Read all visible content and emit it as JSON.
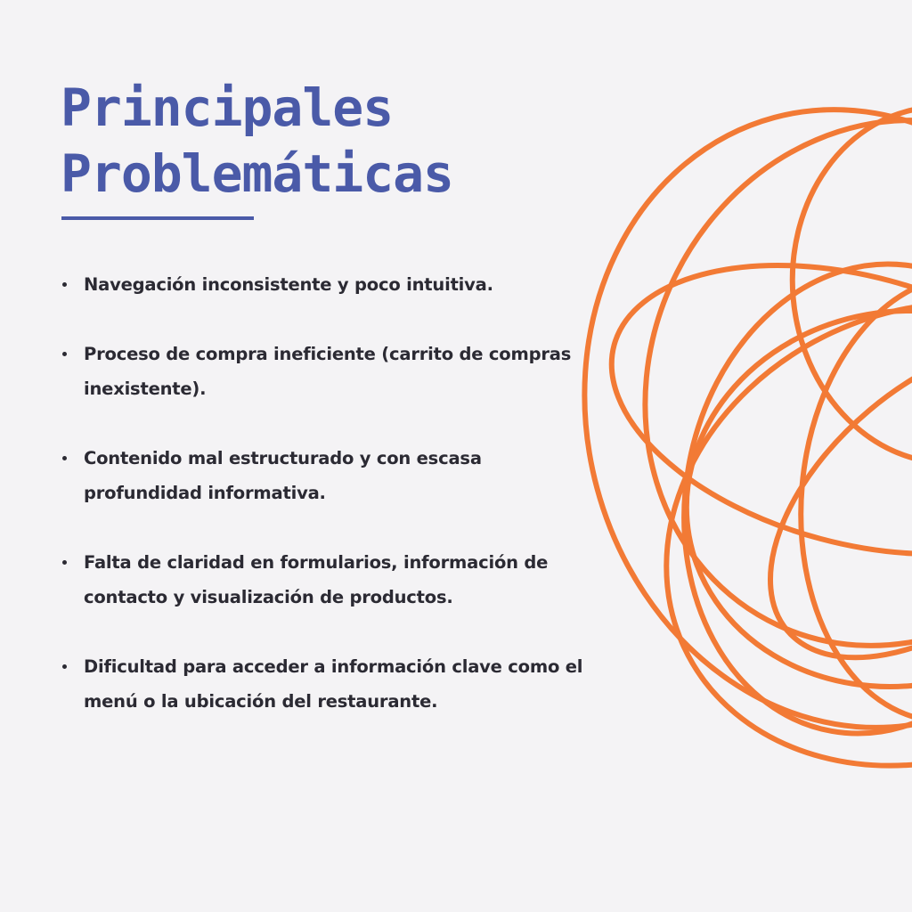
{
  "title": {
    "line1": "Principales",
    "line2": "Problemáticas"
  },
  "bullets": [
    {
      "text": "Navegación inconsistente y poco intuitiva."
    },
    {
      "text": "Proceso de compra ineficiente (carrito de compras inexistente)."
    },
    {
      "text": "Contenido mal estructurado y con escasa profundidad informativa."
    },
    {
      "text": "Falta de claridad en formularios, información de contacto y visualización de productos."
    },
    {
      "text": "Dificultad para acceder a información clave como el menú o la ubicación del restaurante."
    }
  ],
  "colors": {
    "accent_blue": "#4a5aa8",
    "accent_orange": "#f27a35",
    "text": "#2b2a33",
    "background": "#f4f3f5"
  }
}
